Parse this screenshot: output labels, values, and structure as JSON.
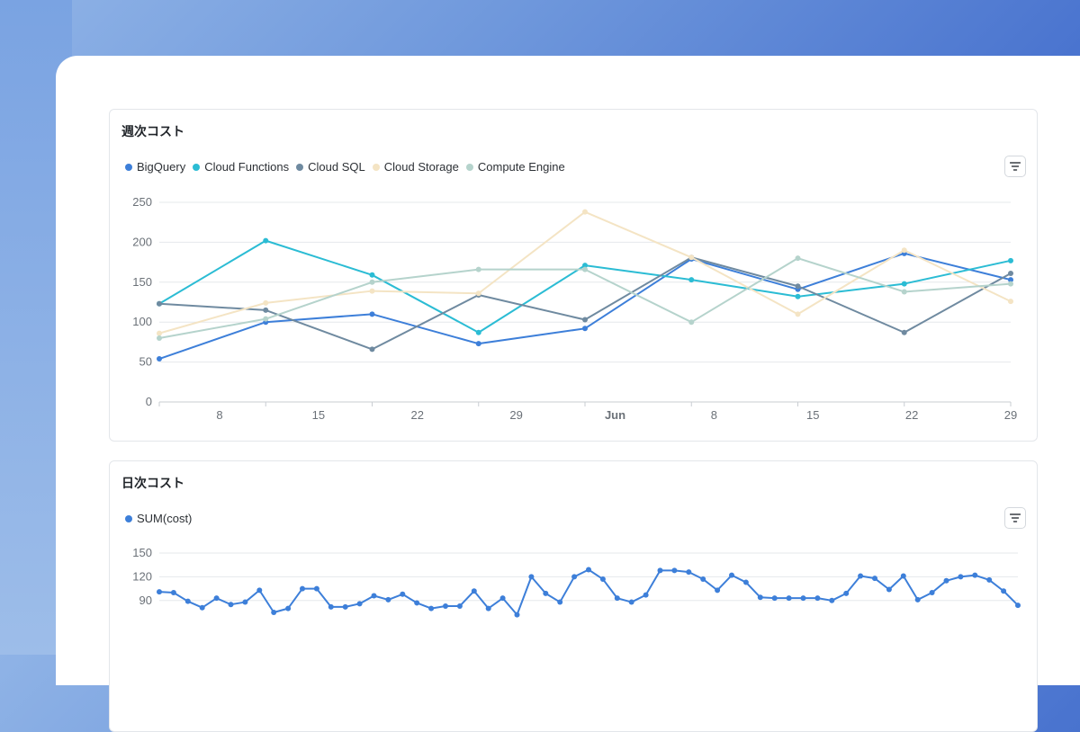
{
  "weekly_card": {
    "title": "週次コスト",
    "filter_icon": "filter-icon"
  },
  "daily_card": {
    "title": "日次コスト",
    "filter_icon": "filter-icon"
  },
  "chart_data": [
    {
      "type": "line",
      "title": "週次コスト",
      "ylim": [
        0,
        250
      ],
      "yticks": [
        0,
        50,
        100,
        150,
        200,
        250
      ],
      "x_tick_labels": [
        "8",
        "15",
        "22",
        "29",
        "Jun",
        "8",
        "15",
        "22",
        "29"
      ],
      "grid": true,
      "legend": "top-left",
      "series": [
        {
          "name": "BigQuery",
          "color": "#3d7fd9",
          "values": [
            54,
            100,
            110,
            73,
            92,
            179,
            141,
            186,
            153
          ]
        },
        {
          "name": "Cloud Functions",
          "color": "#2bbcd4",
          "values": [
            123,
            202,
            159,
            87,
            171,
            153,
            132,
            148,
            177
          ]
        },
        {
          "name": "Cloud SQL",
          "color": "#6f8aa0",
          "values": [
            123,
            115,
            66,
            134,
            103,
            181,
            145,
            87,
            161
          ]
        },
        {
          "name": "Cloud Storage",
          "color": "#f4e4c4",
          "values": [
            86,
            124,
            139,
            136,
            238,
            181,
            110,
            190,
            126
          ]
        },
        {
          "name": "Compute Engine",
          "color": "#b5d3cc",
          "values": [
            80,
            104,
            150,
            166,
            166,
            100,
            180,
            138,
            148
          ]
        }
      ]
    },
    {
      "type": "line",
      "title": "日次コスト",
      "ylim": [
        0,
        150
      ],
      "yticks": [
        90,
        120,
        150
      ],
      "grid": true,
      "legend": "top-left",
      "series": [
        {
          "name": "SUM(cost)",
          "color": "#3d7fd9",
          "values": [
            101,
            100,
            89,
            81,
            93,
            85,
            88,
            103,
            75,
            80,
            105,
            105,
            82,
            82,
            86,
            96,
            91,
            98,
            87,
            80,
            83,
            83,
            102,
            80,
            93,
            72,
            120,
            99,
            88,
            120,
            129,
            117,
            93,
            88,
            97,
            128,
            128,
            126,
            117,
            103,
            122,
            113,
            94,
            93,
            93,
            93,
            93,
            90,
            99,
            121,
            118,
            104,
            121,
            91,
            100,
            115,
            120,
            122,
            116,
            102,
            84
          ]
        }
      ]
    }
  ]
}
